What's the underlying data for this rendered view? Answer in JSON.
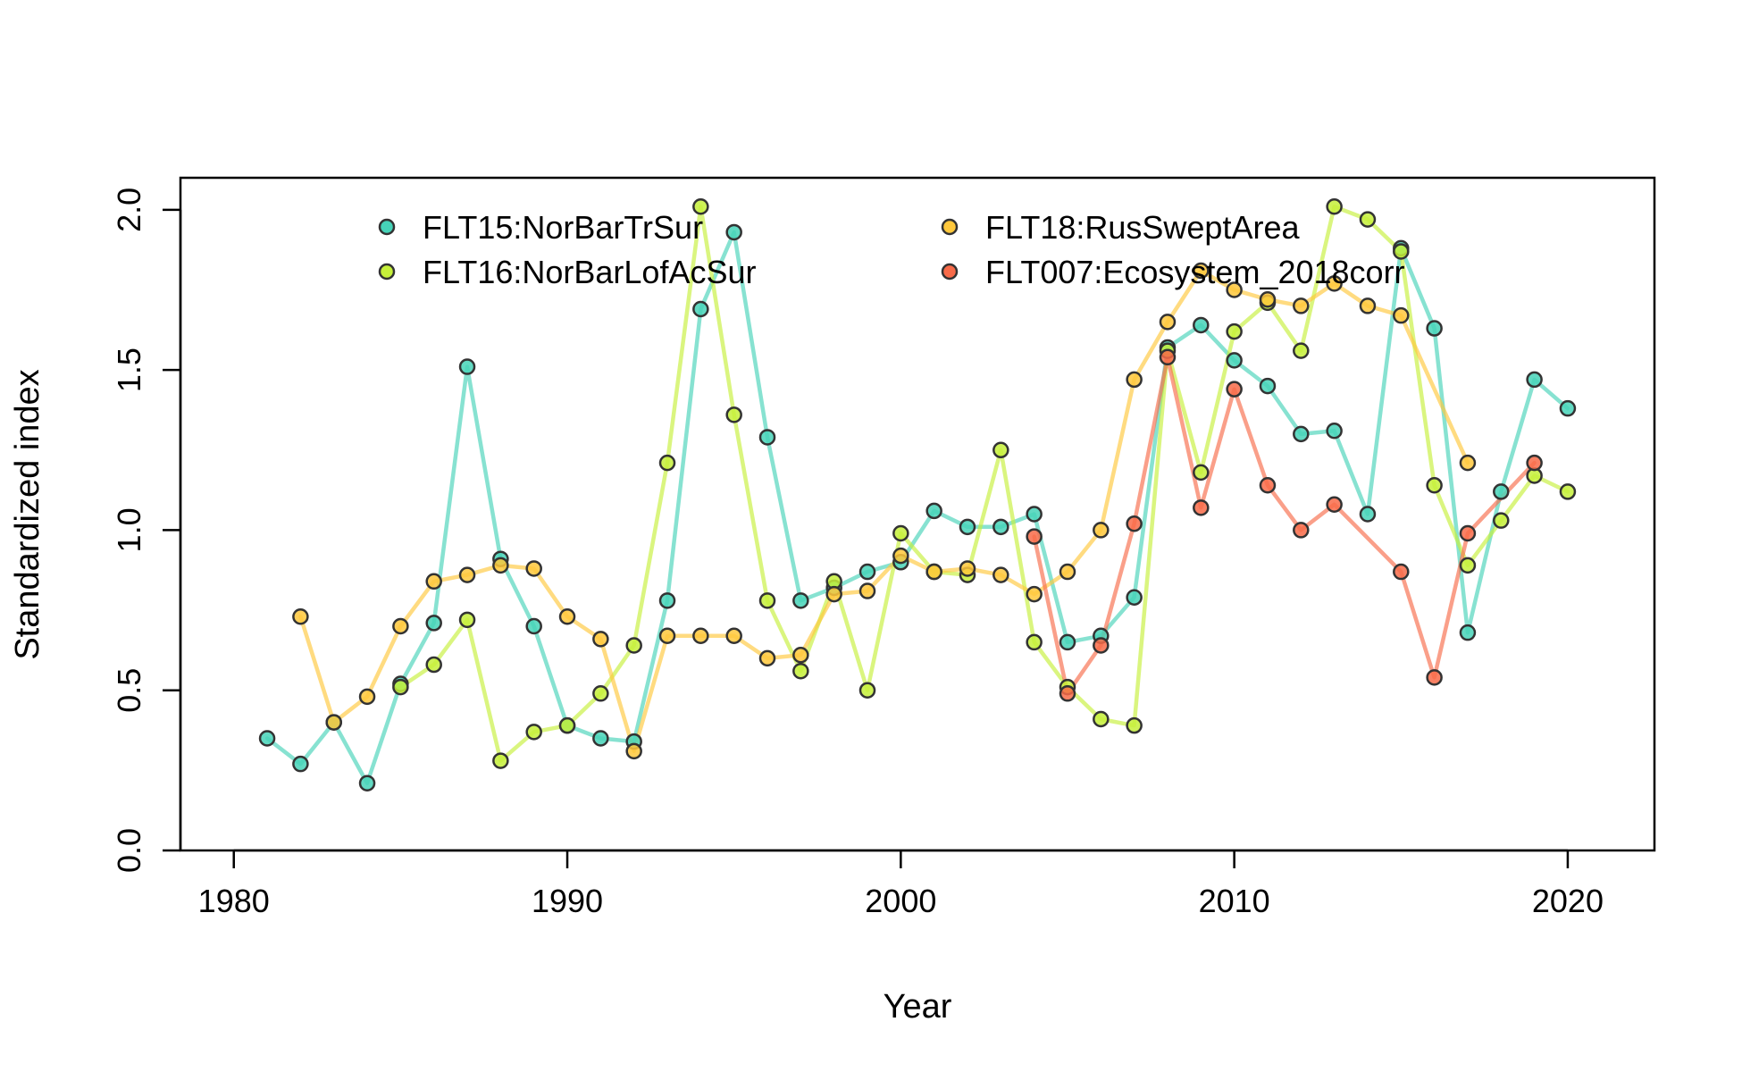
{
  "chart_data": {
    "type": "line",
    "title": "",
    "xlabel": "Year",
    "ylabel": "Standardized index",
    "xlim": [
      1978.4,
      2022.6
    ],
    "ylim": [
      0,
      2.1
    ],
    "xticks": [
      1980,
      1990,
      2000,
      2010,
      2020
    ],
    "yticks": [
      0.0,
      0.5,
      1.0,
      1.5,
      2.0
    ],
    "ytick_labels": [
      "0.0",
      "0.5",
      "1.0",
      "1.5",
      "2.0"
    ],
    "grid": false,
    "legend_placement": "top",
    "series": [
      {
        "name": "FLT15:NorBarTrSur",
        "color": "#46d3b8",
        "x": [
          1981,
          1982,
          1983,
          1984,
          1985,
          1986,
          1987,
          1988,
          1989,
          1990,
          1991,
          1992,
          1993,
          1994,
          1995,
          1996,
          1997,
          1998,
          1999,
          2000,
          2001,
          2002,
          2003,
          2004,
          2005,
          2006,
          2007,
          2008,
          2009,
          2010,
          2011,
          2012,
          2013,
          2014,
          2015,
          2016,
          2017,
          2018,
          2019,
          2020
        ],
        "y": [
          0.35,
          0.27,
          0.4,
          0.21,
          0.52,
          0.71,
          1.51,
          0.91,
          0.7,
          0.39,
          0.35,
          0.34,
          0.78,
          1.69,
          1.93,
          1.29,
          0.78,
          0.82,
          0.87,
          0.9,
          1.06,
          1.01,
          1.01,
          1.05,
          0.65,
          0.67,
          0.79,
          1.57,
          1.64,
          1.53,
          1.45,
          1.3,
          1.31,
          1.05,
          1.88,
          1.63,
          0.68,
          1.12,
          1.47,
          1.38
        ]
      },
      {
        "name": "FLT16:NorBarLofAcSur",
        "color": "#c6f03a",
        "x": [
          1985,
          1986,
          1987,
          1988,
          1989,
          1990,
          1991,
          1992,
          1993,
          1994,
          1995,
          1996,
          1997,
          1998,
          1999,
          2000,
          2001,
          2002,
          2003,
          2004,
          2005,
          2006,
          2007,
          2008,
          2009,
          2010,
          2011,
          2012,
          2013,
          2014,
          2015,
          2016,
          2017,
          2018,
          2019,
          2020
        ],
        "y": [
          0.51,
          0.58,
          0.72,
          0.28,
          0.37,
          0.39,
          0.49,
          0.64,
          1.21,
          2.01,
          1.36,
          0.78,
          0.56,
          0.84,
          0.5,
          0.99,
          0.87,
          0.86,
          1.25,
          0.65,
          0.51,
          0.41,
          0.39,
          1.56,
          1.18,
          1.62,
          1.71,
          1.56,
          2.01,
          1.97,
          1.87,
          1.14,
          0.89,
          1.03,
          1.17,
          1.12
        ]
      },
      {
        "name": "FLT18:RusSweptArea",
        "color": "#ffc83c",
        "x": [
          1982,
          1983,
          1984,
          1985,
          1986,
          1987,
          1988,
          1989,
          1990,
          1991,
          1992,
          1993,
          1994,
          1995,
          1996,
          1997,
          1998,
          1999,
          2000,
          2001,
          2002,
          2003,
          2004,
          2005,
          2006,
          2007,
          2008,
          2009,
          2010,
          2011,
          2012,
          2013,
          2014,
          2015,
          2017
        ],
        "y": [
          0.73,
          0.4,
          0.48,
          0.7,
          0.84,
          0.86,
          0.89,
          0.88,
          0.73,
          0.66,
          0.31,
          0.67,
          0.67,
          0.67,
          0.6,
          0.61,
          0.8,
          0.81,
          0.92,
          0.87,
          0.88,
          0.86,
          0.8,
          0.87,
          1.0,
          1.47,
          1.65,
          1.81,
          1.75,
          1.72,
          1.7,
          1.77,
          1.7,
          1.67,
          1.21
        ]
      },
      {
        "name": "FLT007:Ecosystem_2018corr",
        "color": "#f86b49",
        "x": [
          2004,
          2005,
          2006,
          2007,
          2008,
          2009,
          2010,
          2011,
          2012,
          2013,
          2015,
          2016,
          2017,
          2019
        ],
        "y": [
          0.98,
          0.49,
          0.64,
          1.02,
          1.54,
          1.07,
          1.44,
          1.14,
          1.0,
          1.08,
          0.87,
          0.54,
          0.99,
          1.21
        ]
      }
    ]
  }
}
